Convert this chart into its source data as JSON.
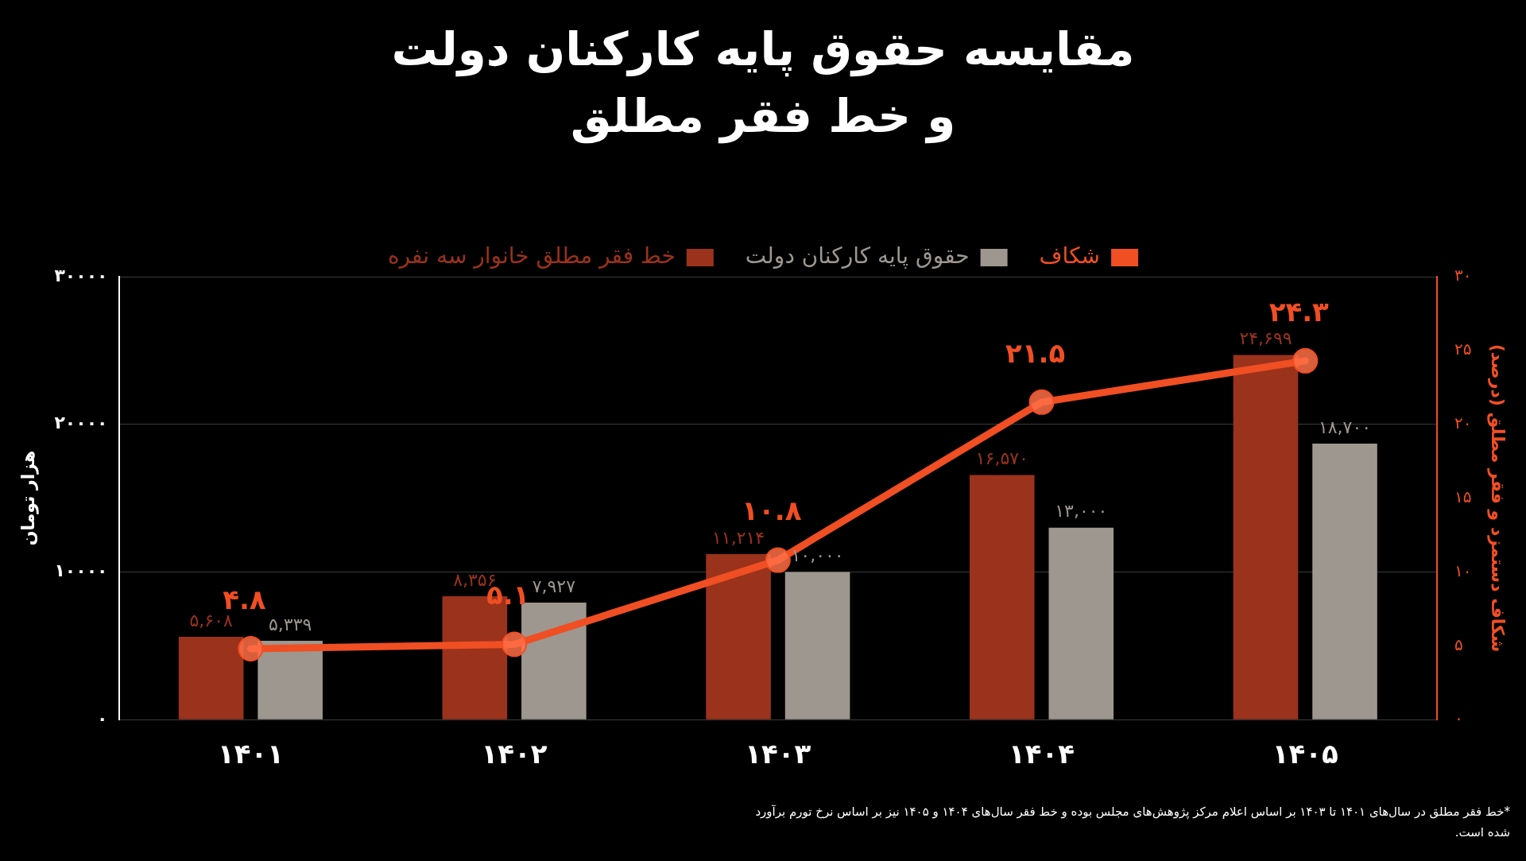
{
  "chart_data": {
    "type": "bar",
    "title": "مقایسه حقوق پایه کارکنان دولت\nو خط فقر مطلق",
    "categories": [
      "۱۴۰۱",
      "۱۴۰۲",
      "۱۴۰۳",
      "۱۴۰۴",
      "۱۴۰۵"
    ],
    "series": [
      {
        "name": "خط فقر مطلق خانوار سه نفره",
        "color": "#9b321b",
        "values": [
          5608,
          8356,
          11214,
          16570,
          24699
        ],
        "value_labels": [
          "۵,۶۰۸",
          "۸,۳۵۶",
          "۱۱,۲۱۴",
          "۱۶,۵۷۰",
          "۲۴,۶۹۹"
        ]
      },
      {
        "name": "حقوق پایه کارکنان دولت",
        "color": "#9d978f",
        "values": [
          5339,
          7927,
          10000,
          13000,
          18700
        ],
        "value_labels": [
          "۵,۳۳۹",
          "۷,۹۲۷",
          "۱۰,۰۰۰",
          "۱۳,۰۰۰",
          "۱۸,۷۰۰"
        ]
      },
      {
        "name": "شکاف",
        "type": "line",
        "axis": "y2",
        "color": "#f04e23",
        "marker": "circle",
        "values": [
          4.8,
          5.1,
          10.8,
          21.5,
          24.3
        ],
        "value_labels": [
          "۴.۸",
          "۵.۱",
          "۱۰.۸",
          "۲۱.۵",
          "۲۴.۳"
        ]
      }
    ],
    "ylabel": "هزار تومان",
    "y2label": "شکاف دستمزد و فقر مطلق (درصد)",
    "ylim": [
      0,
      30000
    ],
    "yticks": [
      {
        "value": 0,
        "label": "۰"
      },
      {
        "value": 10000,
        "label": "۱۰۰۰۰"
      },
      {
        "value": 20000,
        "label": "۲۰۰۰۰"
      },
      {
        "value": 30000,
        "label": "۳۰۰۰۰"
      }
    ],
    "y2lim": [
      0,
      30
    ],
    "y2ticks": [
      {
        "value": 0,
        "label": "۰"
      },
      {
        "value": 5,
        "label": "۵"
      },
      {
        "value": 10,
        "label": "۱۰"
      },
      {
        "value": 15,
        "label": "۱۵"
      },
      {
        "value": 20,
        "label": "۲۰"
      },
      {
        "value": 25,
        "label": "۲۵"
      },
      {
        "value": 30,
        "label": "۳۰"
      }
    ],
    "grid": "y",
    "legend": "top",
    "annotations": [
      "*خط فقر مطلق در سال‌های ۱۴۰۱ تا ۱۴۰۳ بر اساس اعلام مرکز پژوهش‌های مجلس بوده و خط فقر سال‌های ۱۴۰۴ و ۱۴۰۵ نیز بر اساس نرخ تورم برآورد شده است."
    ]
  }
}
